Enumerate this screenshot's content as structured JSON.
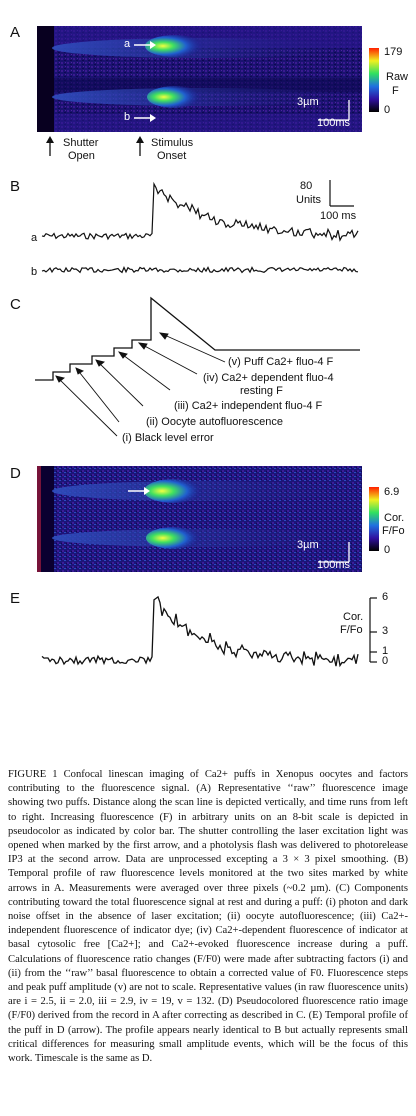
{
  "panels": {
    "A": {
      "letter": "A",
      "arrow_a": "a",
      "arrow_b": "b",
      "colorbar_max": "179",
      "colorbar_min": "0",
      "colorbar_label_1": "Raw",
      "colorbar_label_2": "F",
      "scale_space": "3µm",
      "scale_time": "100ms",
      "shutter_1": "Shutter",
      "shutter_2": "Open",
      "stimulus_1": "Stimulus",
      "stimulus_2": "Onset"
    },
    "B": {
      "letter": "B",
      "scale_value": "80",
      "scale_units": "Units",
      "scale_time": "100 ms",
      "trace_a": "a",
      "trace_b": "b"
    },
    "C": {
      "letter": "C",
      "label_v": "(v) Puff Ca2+ fluo-4 F",
      "label_iv_1": "(iv) Ca2+ dependent fluo-4",
      "label_iv_2": "resting F",
      "label_iii": "(iii) Ca2+ independent fluo-4 F",
      "label_ii": "(ii) Oocyte autofluorescence",
      "label_i": "(i) Black level error"
    },
    "D": {
      "letter": "D",
      "colorbar_max": "6.9",
      "colorbar_min": "0",
      "colorbar_label_1": "Cor.",
      "colorbar_label_2": "F/Fo",
      "scale_space": "3µm",
      "scale_time": "100ms"
    },
    "E": {
      "letter": "E",
      "axis_label_1": "Cor.",
      "axis_label_2": "F/Fo",
      "tick_6": "6",
      "tick_3": "3",
      "tick_1": "1",
      "tick_0": "0"
    }
  },
  "caption": {
    "lead": "FIGURE 1   Confocal linescan imaging of Ca2+ puffs in Xenopus oocytes and factors contributing to the fluorescence signal.",
    "body": "(A) Representative ‘‘raw’’ fluorescence image showing two puffs. Distance along the scan line is depicted vertically, and time runs from left to right. Increasing fluorescence (F) in arbitrary units on an 8-bit scale is depicted in pseudocolor as indicated by color bar. The shutter controlling the laser excitation light was opened when marked by the first arrow, and a photolysis flash was delivered to photorelease IP3 at the second arrow. Data are unprocessed excepting a 3 × 3 pixel smoothing. (B) Temporal profile of raw fluorescence levels monitored at the two sites marked by white arrows in A. Measurements were averaged over three pixels (~0.2 µm). (C) Components contributing toward the total fluorescence signal at rest and during a puff: (i) photon and dark noise offset in the absence of laser excitation; (ii) oocyte autofluorescence; (iii) Ca2+-independent fluorescence of indicator dye; (iv) Ca2+-dependent fluorescence of indicator at basal cytosolic free [Ca2+]; and Ca2+-evoked fluorescence increase during a puff. Calculations of fluorescence ratio changes (F/F0) were made after subtracting factors (i) and (ii) from the ‘‘raw’’ basal fluorescence to obtain a corrected value of F0. Fluorescence steps and peak puff amplitude (v) are not to scale. Representative values (in raw fluorescence units) are i = 2.5, ii = 2.0, iii = 2.9, iv = 19, v = 132. (D) Pseudocolored fluorescence ratio image (F/F0) derived from the record in A after correcting as described in C. (E) Temporal profile of the puff in D (arrow). The profile appears nearly identical to B but actually represents small critical differences for measuring small amplitude events, which will be the focus of this work. Timescale is the same as D."
  }
}
